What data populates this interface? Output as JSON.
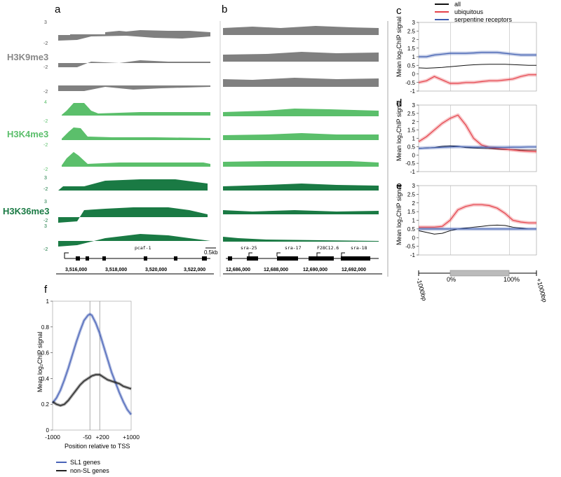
{
  "panel_letters": {
    "a": "a",
    "b": "b",
    "c": "c",
    "d": "d",
    "e": "e",
    "f": "f"
  },
  "colors": {
    "gray": "#808080",
    "lightgreen": "#5bbf6b",
    "darkgreen": "#1a7a44",
    "all": "#111111",
    "ubiquitous": "#e5414a",
    "serpentine": "#3e5db0",
    "sl1": "#4a64b8",
    "nonsl": "#222222"
  },
  "tracks": {
    "marks": [
      "H3K9me3",
      "H3K4me3",
      "H3K36me3"
    ],
    "axis_labels": {
      "h3k9": [
        "3",
        "-2",
        "-2",
        "-2"
      ],
      "h3k4": [
        "4",
        "-2",
        "-2",
        "-2"
      ],
      "h3k36": [
        "3",
        "-2",
        "3",
        "-2",
        "3",
        "-2"
      ]
    },
    "scale_bar": "0.5kb",
    "panel_a": {
      "gene": "pcaf-1",
      "coords": [
        "3,516,000",
        "3,518,000",
        "3,520,000",
        "3,522,000"
      ]
    },
    "panel_b": {
      "genes": [
        "sra-25",
        "sra-17",
        "F28C12.6",
        "sra-18"
      ],
      "coords": [
        "12,686,000",
        "12,688,000",
        "12,690,000",
        "12,692,000"
      ]
    }
  },
  "profiles": {
    "legend": [
      "all",
      "ubiquitous",
      "serpentine receptors"
    ],
    "ylabel_c": "Mean log₂ChIP signal",
    "ylabel_d": "Mean log₂ChIP signal",
    "ylabel_e": "Mean log₂ChIP signal",
    "yticks": [
      "3",
      "2.5",
      "2",
      "1.5",
      "1",
      "0.5",
      "0",
      "-0.5",
      "-1"
    ],
    "gene_body_axis": [
      "-1000bp",
      "0%",
      "100%",
      "+1000bp"
    ]
  },
  "chart_data": [
    {
      "panel": "c",
      "type": "line",
      "ylim": [
        -1,
        3
      ],
      "yticks": [
        -1,
        -0.5,
        0,
        0.5,
        1,
        1.5,
        2,
        2.5,
        3
      ],
      "x": [
        0,
        10,
        20,
        30,
        40,
        50,
        60,
        70,
        80,
        90,
        100,
        110,
        120,
        130,
        140,
        150
      ],
      "series": [
        {
          "name": "all",
          "values": [
            0.35,
            0.33,
            0.35,
            0.38,
            0.42,
            0.46,
            0.5,
            0.53,
            0.55,
            0.56,
            0.56,
            0.56,
            0.54,
            0.52,
            0.5,
            0.5
          ]
        },
        {
          "name": "ubiquitous",
          "values": [
            -0.5,
            -0.4,
            -0.15,
            -0.35,
            -0.55,
            -0.55,
            -0.5,
            -0.5,
            -0.45,
            -0.4,
            -0.4,
            -0.35,
            -0.3,
            -0.15,
            -0.05,
            -0.05
          ]
        },
        {
          "name": "serpentine receptors",
          "values": [
            1.0,
            1.0,
            1.1,
            1.15,
            1.2,
            1.2,
            1.2,
            1.22,
            1.25,
            1.25,
            1.25,
            1.2,
            1.15,
            1.1,
            1.1,
            1.1
          ]
        }
      ]
    },
    {
      "panel": "d",
      "type": "line",
      "ylim": [
        -1,
        3
      ],
      "yticks": [
        -1,
        -0.5,
        0,
        0.5,
        1,
        1.5,
        2,
        2.5,
        3
      ],
      "x": [
        0,
        10,
        20,
        30,
        40,
        50,
        60,
        70,
        80,
        90,
        100,
        110,
        120,
        130,
        140,
        150
      ],
      "series": [
        {
          "name": "all",
          "values": [
            0.4,
            0.42,
            0.45,
            0.52,
            0.55,
            0.52,
            0.45,
            0.42,
            0.4,
            0.38,
            0.35,
            0.33,
            0.32,
            0.3,
            0.3,
            0.3
          ]
        },
        {
          "name": "ubiquitous",
          "values": [
            0.8,
            1.1,
            1.5,
            1.9,
            2.2,
            2.4,
            1.8,
            1.0,
            0.6,
            0.45,
            0.4,
            0.35,
            0.3,
            0.25,
            0.22,
            0.2
          ]
        },
        {
          "name": "serpentine receptors",
          "values": [
            0.4,
            0.42,
            0.44,
            0.46,
            0.48,
            0.5,
            0.48,
            0.47,
            0.47,
            0.46,
            0.46,
            0.46,
            0.47,
            0.47,
            0.48,
            0.48
          ]
        }
      ]
    },
    {
      "panel": "e",
      "type": "line",
      "ylim": [
        -1,
        3
      ],
      "yticks": [
        -1,
        -0.5,
        0,
        0.5,
        1,
        1.5,
        2,
        2.5,
        3
      ],
      "x": [
        0,
        10,
        20,
        30,
        40,
        50,
        60,
        70,
        80,
        90,
        100,
        110,
        120,
        130,
        140,
        150
      ],
      "series": [
        {
          "name": "all",
          "values": [
            0.4,
            0.3,
            0.2,
            0.25,
            0.4,
            0.5,
            0.55,
            0.6,
            0.65,
            0.7,
            0.72,
            0.7,
            0.6,
            0.55,
            0.5,
            0.5
          ]
        },
        {
          "name": "ubiquitous",
          "values": [
            0.6,
            0.6,
            0.6,
            0.65,
            1.0,
            1.6,
            1.8,
            1.9,
            1.9,
            1.85,
            1.7,
            1.4,
            1.0,
            0.9,
            0.85,
            0.85
          ]
        },
        {
          "name": "serpentine receptors",
          "values": [
            0.5,
            0.5,
            0.5,
            0.5,
            0.5,
            0.5,
            0.5,
            0.5,
            0.5,
            0.5,
            0.5,
            0.5,
            0.5,
            0.5,
            0.5,
            0.5
          ]
        }
      ]
    },
    {
      "panel": "f",
      "type": "line",
      "ylabel": "Mean log₂ChIP signal",
      "xlabel": "Position relative to TSS",
      "xlim": [
        -1000,
        1000
      ],
      "ylim": [
        0,
        1
      ],
      "xtick_labels": [
        "-1000",
        "-50",
        "+200",
        "+1000"
      ],
      "ytick_labels": [
        "1",
        "0.8",
        "0.6",
        "0.4",
        "0.2",
        "0"
      ],
      "vlines": [
        -50,
        200
      ],
      "x": [
        -1000,
        -900,
        -800,
        -700,
        -600,
        -500,
        -400,
        -300,
        -200,
        -100,
        -50,
        0,
        100,
        200,
        300,
        400,
        500,
        600,
        700,
        800,
        900,
        1000
      ],
      "series": [
        {
          "name": "SL1 genes",
          "values": [
            0.21,
            0.25,
            0.31,
            0.39,
            0.48,
            0.58,
            0.68,
            0.77,
            0.85,
            0.89,
            0.9,
            0.89,
            0.83,
            0.75,
            0.65,
            0.55,
            0.45,
            0.37,
            0.29,
            0.22,
            0.16,
            0.12
          ]
        },
        {
          "name": "non-SL genes",
          "values": [
            0.22,
            0.2,
            0.19,
            0.2,
            0.23,
            0.27,
            0.31,
            0.35,
            0.38,
            0.4,
            0.41,
            0.42,
            0.43,
            0.43,
            0.41,
            0.39,
            0.38,
            0.37,
            0.36,
            0.34,
            0.33,
            0.32
          ]
        }
      ],
      "legend": [
        "SL1 genes",
        "non-SL genes"
      ]
    }
  ]
}
